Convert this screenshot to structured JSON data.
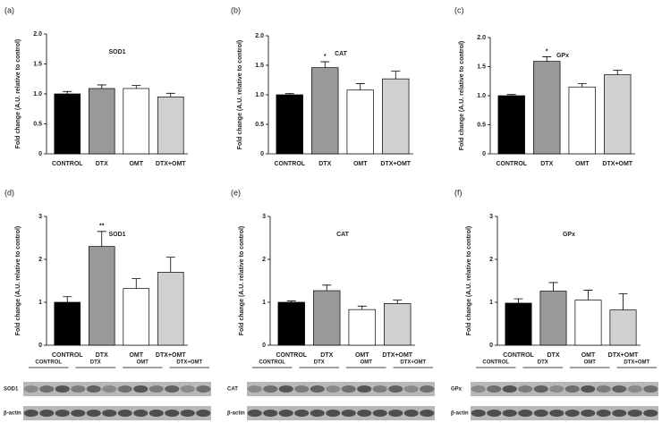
{
  "chart_data": [
    {
      "type": "bar",
      "panel": "(a)",
      "title": "SOD1",
      "ylabel": "Fold change (A.U. relative to control)",
      "categories": [
        "CONTROL",
        "DTX",
        "OMT",
        "DTX+OMT"
      ],
      "values": [
        1.0,
        1.09,
        1.09,
        0.95
      ],
      "errors": [
        0.04,
        0.06,
        0.05,
        0.06
      ],
      "colors": [
        "#000000",
        "#999999",
        "#ffffff",
        "#d0d0d0"
      ],
      "significance": [
        null,
        null,
        null,
        null
      ],
      "ylim": [
        0,
        2
      ],
      "yticks": [
        0,
        0.5,
        {
          "value": 1,
          "label": "1.0"
        },
        1.5,
        {
          "value": 2,
          "label": "2.0"
        }
      ]
    },
    {
      "type": "bar",
      "panel": "(b)",
      "title": "CAT",
      "ylabel": "Fold change (A.U. relative to control)",
      "categories": [
        "CONTROL",
        "DTX",
        "OMT",
        "DTX+OMT"
      ],
      "values": [
        1.0,
        1.46,
        1.08,
        1.27
      ],
      "errors": [
        0.02,
        0.1,
        0.11,
        0.13
      ],
      "colors": [
        "#000000",
        "#999999",
        "#ffffff",
        "#d0d0d0"
      ],
      "significance": [
        null,
        "*",
        null,
        null
      ],
      "ylim": [
        0,
        2
      ],
      "yticks": [
        0,
        0.5,
        {
          "value": 1,
          "label": "1.0"
        },
        1.5,
        {
          "value": 2,
          "label": "2.0"
        }
      ]
    },
    {
      "type": "bar",
      "panel": "(c)",
      "title": "GPx",
      "ylabel": "Fold change (A.U. relative to control)",
      "categories": [
        "CONTROL",
        "DTX",
        "OMT",
        "DTX+OMT"
      ],
      "values": [
        1.0,
        1.59,
        1.15,
        1.36
      ],
      "errors": [
        0.02,
        0.08,
        0.06,
        0.08
      ],
      "colors": [
        "#000000",
        "#999999",
        "#ffffff",
        "#d0d0d0"
      ],
      "significance": [
        null,
        "*",
        null,
        null
      ],
      "ylim": [
        0,
        2
      ],
      "yticks": [
        0,
        0.5,
        {
          "value": 1,
          "label": "1.0"
        },
        1.5,
        {
          "value": 2,
          "label": "2.0"
        }
      ]
    },
    {
      "type": "bar",
      "panel": "(d)",
      "title": "SOD1",
      "ylabel": "Fold change (A.U. relative to control)",
      "categories": [
        "CONTROL",
        "DTX",
        "OMT",
        "DTX+OMT"
      ],
      "values": [
        1.0,
        2.3,
        1.32,
        1.7
      ],
      "errors": [
        0.13,
        0.35,
        0.23,
        0.35
      ],
      "colors": [
        "#000000",
        "#999999",
        "#ffffff",
        "#d0d0d0"
      ],
      "significance": [
        null,
        "**",
        null,
        null
      ],
      "ylim": [
        0,
        3
      ],
      "yticks": [
        0,
        1,
        2,
        3
      ],
      "blot": {
        "groups": [
          "CONTROL",
          "DTX",
          "OMT",
          "DTX+OMT"
        ],
        "rows": [
          "SOD1",
          "β-actin"
        ]
      }
    },
    {
      "type": "bar",
      "panel": "(e)",
      "title": "CAT",
      "ylabel": "Fold change (A.U. relative to control)",
      "categories": [
        "CONTROL",
        "DTX",
        "OMT",
        "DTX+OMT"
      ],
      "values": [
        1.0,
        1.27,
        0.83,
        0.97
      ],
      "errors": [
        0.03,
        0.13,
        0.08,
        0.08
      ],
      "colors": [
        "#000000",
        "#999999",
        "#ffffff",
        "#d0d0d0"
      ],
      "significance": [
        null,
        null,
        null,
        null
      ],
      "ylim": [
        0,
        3
      ],
      "yticks": [
        0,
        1,
        2,
        3
      ],
      "blot": {
        "groups": [
          "CONTROL",
          "DTX",
          "OMT",
          "DTX+OMT"
        ],
        "rows": [
          "CAT",
          "β-actin"
        ]
      }
    },
    {
      "type": "bar",
      "panel": "(f)",
      "title": "GPx",
      "ylabel": "Fold change (A.U. relative to control)",
      "categories": [
        "CONTROL",
        "DTX",
        "OMT",
        "DTX+OMT"
      ],
      "values": [
        0.98,
        1.26,
        1.05,
        0.82
      ],
      "errors": [
        0.1,
        0.2,
        0.23,
        0.38
      ],
      "colors": [
        "#000000",
        "#999999",
        "#ffffff",
        "#d0d0d0"
      ],
      "significance": [
        null,
        null,
        null,
        null
      ],
      "ylim": [
        0,
        3
      ],
      "yticks": [
        0,
        1,
        2,
        3
      ],
      "blot": {
        "groups": [
          "CONTROL",
          "DTX",
          "OMT",
          "DTX+OMT"
        ],
        "rows": [
          "GPx",
          "β-actin"
        ]
      }
    }
  ]
}
